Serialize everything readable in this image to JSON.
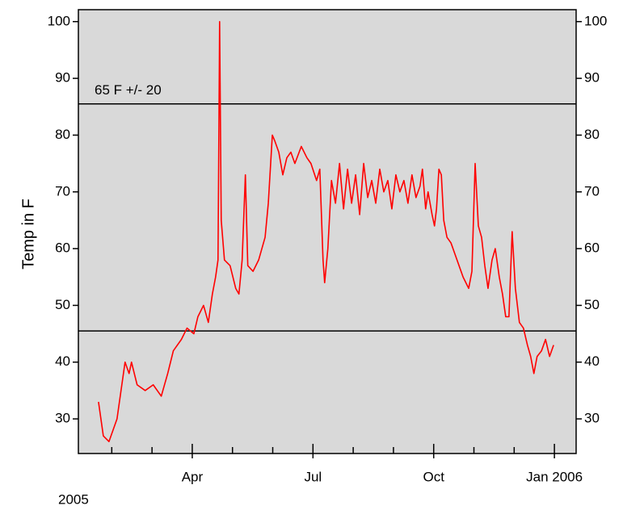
{
  "chart_data": {
    "type": "line",
    "ylabel": "Temp in F",
    "year_label": "2005",
    "annotation": "65 F  +/- 20",
    "reference_lines": [
      85.5,
      45.5
    ],
    "xlim": [
      0.17,
      12.54
    ],
    "ylim": [
      23.9,
      102.1
    ],
    "xticks": [
      {
        "value": 3,
        "label": "Apr"
      },
      {
        "value": 6,
        "label": "Jul"
      },
      {
        "value": 9,
        "label": "Oct"
      },
      {
        "value": 12,
        "label": "Jan 2006"
      }
    ],
    "xminor_ticks": [
      1,
      2,
      4,
      5,
      7,
      8,
      10,
      11
    ],
    "yticks": [
      30,
      40,
      50,
      60,
      70,
      80,
      90,
      100
    ],
    "right_axis": true,
    "series": [
      {
        "color": "#ff0000",
        "x": [
          0.67,
          0.79,
          0.93,
          1.13,
          1.23,
          1.33,
          1.43,
          1.49,
          1.63,
          1.83,
          2.03,
          2.23,
          2.39,
          2.53,
          2.73,
          2.87,
          3.04,
          3.14,
          3.28,
          3.4,
          3.5,
          3.58,
          3.64,
          3.68,
          3.72,
          3.8,
          3.94,
          4.08,
          4.16,
          4.24,
          4.32,
          4.38,
          4.51,
          4.65,
          4.81,
          4.89,
          4.99,
          5.05,
          5.15,
          5.25,
          5.35,
          5.45,
          5.55,
          5.71,
          5.85,
          5.95,
          6.09,
          6.17,
          6.25,
          6.29,
          6.37,
          6.46,
          6.56,
          6.66,
          6.76,
          6.86,
          6.96,
          7.06,
          7.16,
          7.26,
          7.36,
          7.46,
          7.56,
          7.66,
          7.76,
          7.86,
          7.96,
          8.06,
          8.16,
          8.26,
          8.36,
          8.46,
          8.56,
          8.66,
          8.72,
          8.8,
          8.86,
          8.96,
          9.02,
          9.07,
          9.13,
          9.19,
          9.25,
          9.33,
          9.43,
          9.53,
          9.63,
          9.73,
          9.87,
          9.95,
          10.03,
          10.11,
          10.19,
          10.27,
          10.35,
          10.45,
          10.53,
          10.63,
          10.71,
          10.79,
          10.87,
          10.95,
          11.03,
          11.13,
          11.23,
          11.33,
          11.41,
          11.49,
          11.57,
          11.68,
          11.78,
          11.88,
          11.98
        ],
        "values": [
          33,
          27,
          26,
          30,
          35,
          40,
          38,
          40,
          36,
          35,
          36,
          34,
          38,
          42,
          44,
          46,
          45,
          48,
          50,
          47,
          52,
          55,
          58,
          100,
          65,
          58,
          57,
          53,
          52,
          58,
          73,
          57,
          56,
          58,
          62,
          68,
          80,
          79,
          77,
          73,
          76,
          77,
          75,
          78,
          76,
          75,
          72,
          74,
          58,
          54,
          60,
          72,
          68,
          75,
          67,
          74,
          68,
          73,
          66,
          75,
          69,
          72,
          68,
          74,
          70,
          72,
          67,
          73,
          70,
          72,
          68,
          73,
          69,
          71,
          74,
          67,
          70,
          66,
          64,
          67,
          74,
          73,
          65,
          62,
          61,
          59,
          57,
          55,
          53,
          56,
          75,
          64,
          62,
          57,
          53,
          58,
          60,
          55,
          52,
          48,
          48,
          63,
          53,
          47,
          46,
          43,
          41,
          38,
          41,
          42,
          44,
          41,
          43
        ]
      }
    ]
  }
}
